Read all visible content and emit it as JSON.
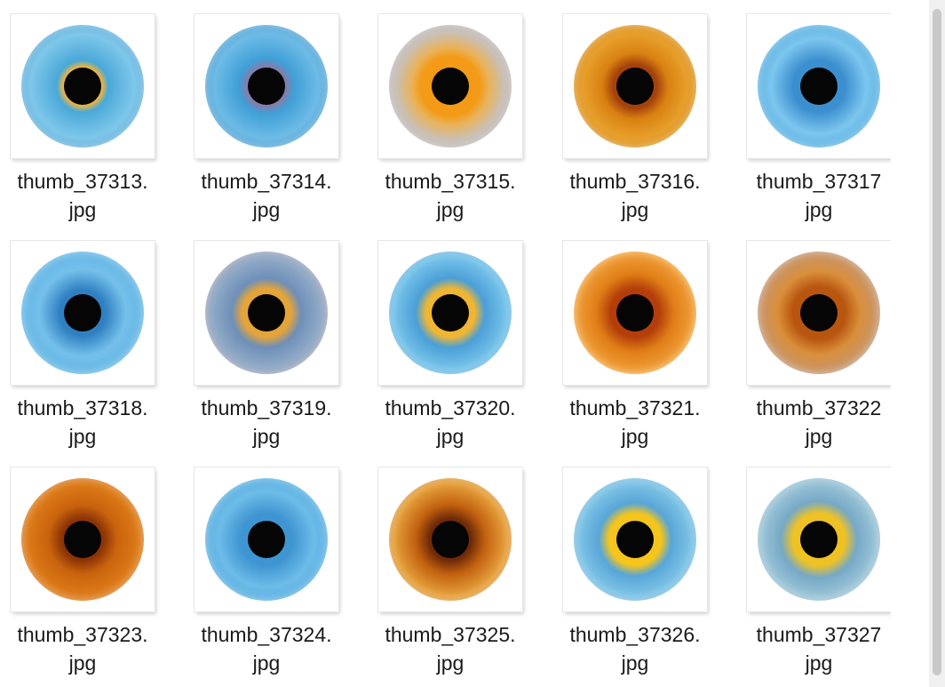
{
  "files": [
    {
      "name_line1": "thumb_37313.",
      "name_line2": "jpg",
      "thumb_icon": "iris-photo-blue"
    },
    {
      "name_line1": "thumb_37314.",
      "name_line2": "jpg",
      "thumb_icon": "iris-photo-blue"
    },
    {
      "name_line1": "thumb_37315.",
      "name_line2": "jpg",
      "thumb_icon": "iris-photo-amber-grey"
    },
    {
      "name_line1": "thumb_37316.",
      "name_line2": "jpg",
      "thumb_icon": "iris-photo-amber"
    },
    {
      "name_line1": "thumb_37317",
      "name_line2": "jpg",
      "thumb_icon": "iris-photo-blue"
    },
    {
      "name_line1": "thumb_37318.",
      "name_line2": "jpg",
      "thumb_icon": "iris-photo-blue"
    },
    {
      "name_line1": "thumb_37319.",
      "name_line2": "jpg",
      "thumb_icon": "iris-photo-mixed"
    },
    {
      "name_line1": "thumb_37320.",
      "name_line2": "jpg",
      "thumb_icon": "iris-photo-blue-gold"
    },
    {
      "name_line1": "thumb_37321.",
      "name_line2": "jpg",
      "thumb_icon": "iris-photo-orange"
    },
    {
      "name_line1": "thumb_37322",
      "name_line2": "jpg",
      "thumb_icon": "iris-photo-orange-grey"
    },
    {
      "name_line1": "thumb_37323.",
      "name_line2": "jpg",
      "thumb_icon": "iris-photo-copper"
    },
    {
      "name_line1": "thumb_37324.",
      "name_line2": "jpg",
      "thumb_icon": "iris-photo-blue"
    },
    {
      "name_line1": "thumb_37325.",
      "name_line2": "jpg",
      "thumb_icon": "iris-photo-brown-gold"
    },
    {
      "name_line1": "thumb_37326.",
      "name_line2": "jpg",
      "thumb_icon": "iris-photo-blue-yellow"
    },
    {
      "name_line1": "thumb_37327",
      "name_line2": "jpg",
      "thumb_icon": "iris-photo-teal-yellow"
    }
  ],
  "colors": {
    "background": "#ffffff",
    "label_text": "#1a1a1a",
    "scrollbar_track": "#f0f0f0",
    "scrollbar_thumb": "#c9c9c9"
  }
}
